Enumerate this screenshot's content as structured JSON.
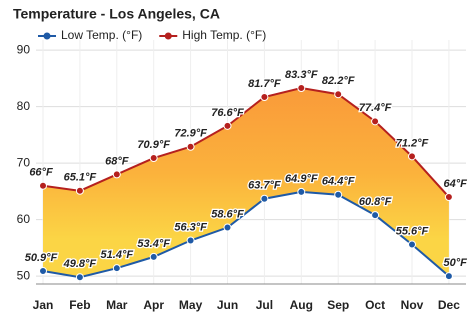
{
  "chart_data": {
    "type": "line",
    "title": "Temperature - Los Angeles, CA",
    "categories": [
      "Jan",
      "Feb",
      "Mar",
      "Apr",
      "May",
      "Jun",
      "Jul",
      "Aug",
      "Sep",
      "Oct",
      "Nov",
      "Dec"
    ],
    "series": [
      {
        "name": "Low Temp. (°F)",
        "color": "#1f5aa6",
        "values": [
          50.9,
          49.8,
          51.4,
          53.4,
          56.3,
          58.6,
          63.7,
          64.9,
          64.4,
          60.8,
          55.6,
          50
        ],
        "value_labels": [
          "50.9°F",
          "49.8°F",
          "51.4°F",
          "53.4°F",
          "56.3°F",
          "58.6°F",
          "63.7°F",
          "64.9°F",
          "64.4°F",
          "60.8°F",
          "55.6°F",
          "50°F"
        ]
      },
      {
        "name": "High Temp. (°F)",
        "color": "#b5201e",
        "values": [
          66,
          65.1,
          68,
          70.9,
          72.9,
          76.6,
          81.7,
          83.3,
          82.2,
          77.4,
          71.2,
          64
        ],
        "value_labels": [
          "66°F",
          "65.1°F",
          "68°F",
          "70.9°F",
          "72.9°F",
          "76.6°F",
          "81.7°F",
          "83.3°F",
          "82.2°F",
          "77.4°F",
          "71.2°F",
          "64°F"
        ]
      }
    ],
    "ylim": [
      48.6,
      91.8
    ],
    "yticks": [
      50,
      60,
      70,
      80,
      90
    ],
    "grid": true,
    "legend": "top-left"
  }
}
